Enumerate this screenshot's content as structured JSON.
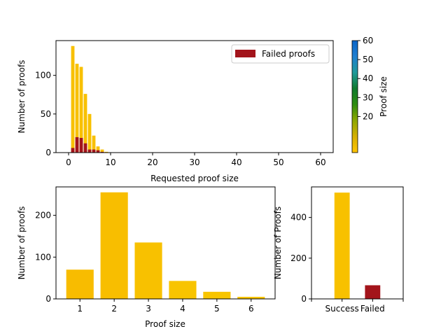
{
  "chart_data": [
    {
      "type": "bar",
      "xlabel": "Requested proof size",
      "ylabel": "Number of proofs",
      "xlim": [
        -3,
        63
      ],
      "ylim": [
        0,
        145
      ],
      "xticks": [
        0,
        10,
        20,
        30,
        40,
        50,
        60
      ],
      "yticks": [
        0,
        50,
        100
      ],
      "legend": {
        "label": "Failed proofs",
        "placement": "top-right"
      },
      "series": [
        {
          "name": "",
          "x": [
            1,
            2,
            3,
            4,
            5,
            6,
            7,
            8,
            9
          ],
          "values": [
            138,
            115,
            111,
            76,
            50,
            22,
            8,
            4,
            1
          ],
          "color": "#f8c000"
        },
        {
          "name": "Failed proofs",
          "x": [
            1,
            2,
            3,
            4,
            5,
            6,
            7,
            8,
            9
          ],
          "values": [
            6,
            20,
            19,
            12,
            4,
            4,
            3,
            1,
            0
          ],
          "color": "#a3141b"
        }
      ],
      "colorbar": {
        "label": "Proof size",
        "range": [
          1,
          60
        ],
        "ticks": [
          20,
          30,
          40,
          50,
          60
        ],
        "colors": [
          "#ffc400",
          "#d6b000",
          "#8ea800",
          "#2e8c10",
          "#0f7a2e",
          "#1f9a9a",
          "#1f7fd0",
          "#0a64c8"
        ]
      }
    },
    {
      "type": "bar",
      "xlabel": "Proof size",
      "ylabel": "Number of proofs",
      "categories": [
        "1",
        "2",
        "3",
        "4",
        "5",
        "6"
      ],
      "values": [
        70,
        255,
        135,
        43,
        17,
        5
      ],
      "ylim": [
        0,
        268
      ],
      "yticks": [
        0,
        100,
        200
      ],
      "colors": [
        "#f8bc00",
        "#f8be00",
        "#f8c100",
        "#f8c400",
        "#f8c500",
        "#f8c500"
      ]
    },
    {
      "type": "bar",
      "ylabel": "Number of Proofs",
      "categories": [
        "Success",
        "Failed"
      ],
      "values": [
        522,
        67
      ],
      "ylim": [
        0,
        550
      ],
      "yticks": [
        0,
        200,
        400
      ],
      "colors": [
        "#f8c100",
        "#a3141b"
      ]
    }
  ]
}
